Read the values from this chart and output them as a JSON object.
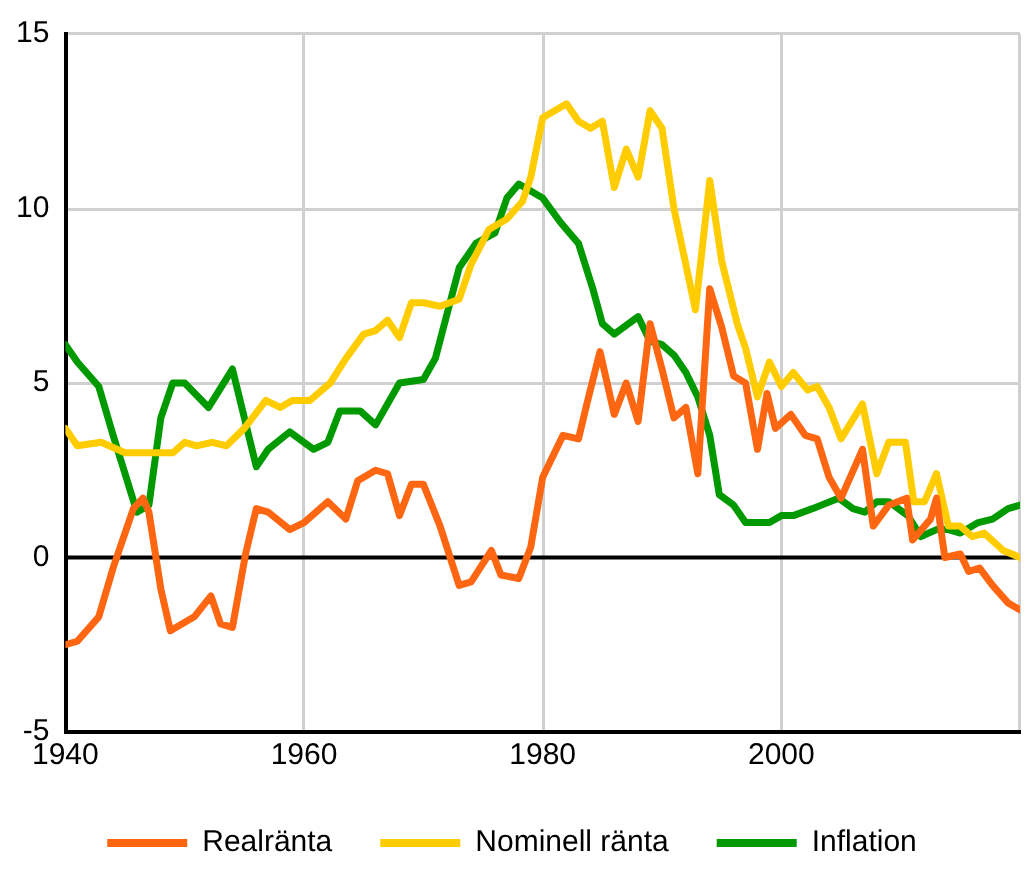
{
  "chart_data": {
    "type": "line",
    "xlim": [
      1940,
      2020
    ],
    "xticks": [
      1940,
      1960,
      1980,
      2000,
      {
        "value": 2020,
        "label": null
      }
    ],
    "ylim": [
      -5,
      15
    ],
    "yticks": [
      -5,
      0,
      5,
      10,
      15
    ],
    "grid": true,
    "legend": "bottom",
    "marker": "none",
    "line_style": "solid",
    "ref_lines": [
      {
        "axis": "y",
        "value": 0,
        "color": "#000000"
      }
    ],
    "series": [
      {
        "name": "Realränta",
        "color": "#ff6611",
        "x": [
          1940,
          1941,
          1942.8,
          1944,
          1945.7,
          1946.5,
          1947,
          1948,
          1948.8,
          1950.8,
          1952.2,
          1953,
          1954,
          1955.1,
          1956,
          1957,
          1958.8,
          1960,
          1962,
          1963.5,
          1964.5,
          1966,
          1967,
          1968,
          1969,
          1970,
          1971.4,
          1973,
          1974,
          1975.7,
          1976.5,
          1978,
          1979,
          1980,
          1981.7,
          1983,
          1983.7,
          1984.8,
          1986,
          1987,
          1988,
          1989,
          1990,
          1991,
          1992,
          1993,
          1994,
          1995,
          1996,
          1997,
          1998,
          1998.8,
          1999.5,
          2000.8,
          2002,
          2003,
          2004,
          2005,
          2006.8,
          2007.7,
          2009,
          2010.5,
          2011,
          2012.5,
          2013,
          2013.7,
          2015,
          2015.7,
          2016.6,
          2017.7,
          2019,
          2020
        ],
        "values": [
          -2.5,
          -2.4,
          -1.7,
          -0.3,
          1.4,
          1.7,
          1.3,
          -0.9,
          -2.1,
          -1.7,
          -1.1,
          -1.9,
          -2,
          0.1,
          1.4,
          1.3,
          0.8,
          1,
          1.6,
          1.1,
          2.2,
          2.5,
          2.4,
          1.2,
          2.1,
          2.1,
          0.9,
          -0.8,
          -0.7,
          0.2,
          -0.5,
          -0.6,
          0.3,
          2.3,
          3.5,
          3.4,
          4.4,
          5.9,
          4.1,
          5,
          3.9,
          6.7,
          5.4,
          4,
          4.3,
          2.4,
          7.7,
          6.6,
          5.2,
          5,
          3.1,
          4.7,
          3.7,
          4.1,
          3.5,
          3.4,
          2.3,
          1.7,
          3.1,
          0.9,
          1.5,
          1.7,
          0.5,
          1.1,
          1.7,
          0,
          0.1,
          -0.4,
          -0.3,
          -0.8,
          -1.3,
          -1.5
        ]
      },
      {
        "name": "Nominell ränta",
        "color": "#ffcc00",
        "x": [
          1940,
          1941,
          1943,
          1945,
          1949,
          1950,
          1951,
          1952.3,
          1953.5,
          1955,
          1956.8,
          1958,
          1959,
          1960.5,
          1962.2,
          1963.5,
          1965,
          1966,
          1967,
          1968,
          1969,
          1970,
          1971.4,
          1973,
          1974,
          1975.5,
          1977,
          1978.3,
          1979,
          1980,
          1982,
          1983,
          1984,
          1985,
          1986,
          1987,
          1988,
          1989,
          1990,
          1991,
          1992.8,
          1994,
          1995,
          1996.3,
          1997,
          1998,
          1999,
          2000,
          2001,
          2002.2,
          2003,
          2004,
          2005,
          2006.8,
          2008,
          2009,
          2010.4,
          2011.1,
          2012,
          2013,
          2014,
          2015,
          2016,
          2017,
          2018.6,
          2020
        ],
        "values": [
          3.7,
          3.2,
          3.3,
          3,
          3,
          3.3,
          3.2,
          3.3,
          3.2,
          3.7,
          4.5,
          4.3,
          4.5,
          4.5,
          5,
          5.7,
          6.4,
          6.5,
          6.8,
          6.3,
          7.3,
          7.3,
          7.2,
          7.4,
          8.4,
          9.4,
          9.7,
          10.2,
          10.9,
          12.6,
          13,
          12.5,
          12.3,
          12.5,
          10.6,
          11.7,
          10.9,
          12.8,
          12.3,
          10,
          7.1,
          10.8,
          8.5,
          6.7,
          6,
          4.6,
          5.6,
          4.9,
          5.3,
          4.8,
          4.9,
          4.3,
          3.4,
          4.4,
          2.4,
          3.3,
          3.3,
          1.6,
          1.6,
          2.4,
          0.9,
          0.9,
          0.6,
          0.7,
          0.2,
          0
        ]
      },
      {
        "name": "Inflation",
        "color": "#009900",
        "x": [
          1940,
          1941,
          1942.8,
          1944,
          1946,
          1947,
          1948,
          1949,
          1950,
          1952,
          1954,
          1956,
          1957,
          1958.8,
          1960.8,
          1962,
          1963,
          1964.7,
          1966,
          1968,
          1970,
          1971,
          1973,
          1974.4,
          1976,
          1977,
          1978,
          1980,
          1981.5,
          1983,
          1984.2,
          1985,
          1986,
          1988,
          1989,
          1990,
          1991,
          1992,
          1993,
          1994,
          1994.8,
          1996,
          1997,
          1999,
          2000,
          2001,
          2002.6,
          2004.8,
          2006,
          2007,
          2008,
          2009,
          2010.6,
          2011.7,
          2013,
          2014,
          2015,
          2016.5,
          2017.7,
          2019,
          2020
        ],
        "values": [
          6.1,
          5.6,
          4.9,
          3.5,
          1.3,
          1.5,
          4,
          5,
          5,
          4.3,
          5.4,
          2.6,
          3.1,
          3.6,
          3.1,
          3.3,
          4.2,
          4.2,
          3.8,
          5,
          5.1,
          5.7,
          8.3,
          9,
          9.3,
          10.3,
          10.7,
          10.3,
          9.6,
          9,
          7.7,
          6.7,
          6.4,
          6.9,
          6.2,
          6.1,
          5.8,
          5.3,
          4.6,
          3.5,
          1.8,
          1.5,
          1,
          1,
          1.2,
          1.2,
          1.4,
          1.7,
          1.4,
          1.3,
          1.6,
          1.6,
          1.2,
          0.6,
          0.8,
          0.8,
          0.7,
          1,
          1.1,
          1.4,
          1.5
        ]
      }
    ]
  }
}
